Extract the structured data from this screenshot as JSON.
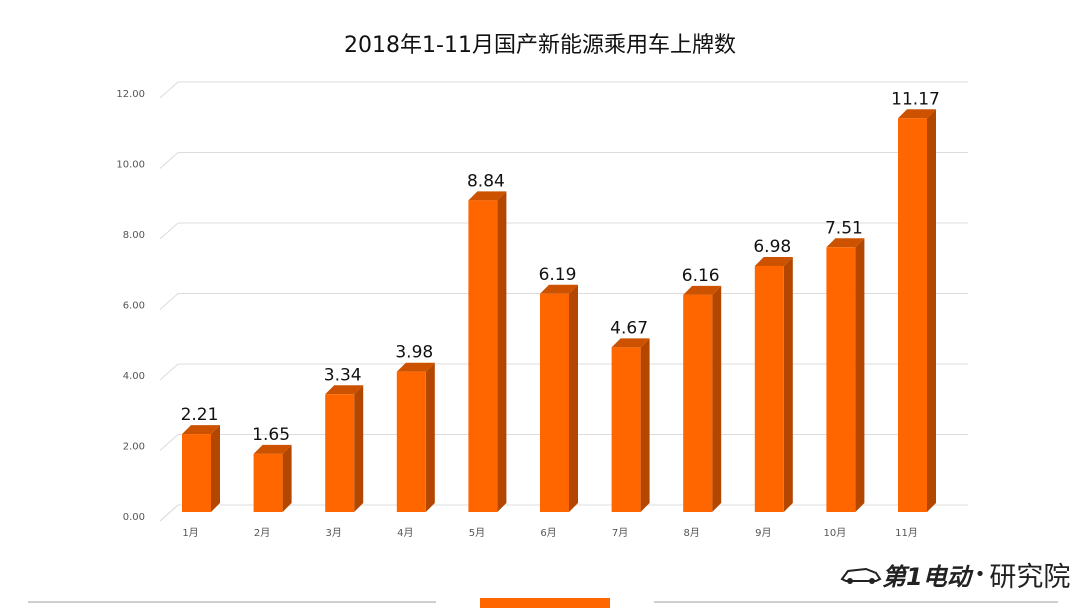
{
  "chart_data": {
    "type": "bar",
    "title": "2018年1-11月国产新能源乘用车上牌数",
    "categories": [
      "1月",
      "2月",
      "3月",
      "4月",
      "5月",
      "6月",
      "7月",
      "8月",
      "9月",
      "10月",
      "11月"
    ],
    "values": [
      2.21,
      1.65,
      3.34,
      3.98,
      8.84,
      6.19,
      4.67,
      6.16,
      6.98,
      7.51,
      11.17
    ],
    "value_labels": [
      "2.21",
      "1.65",
      "3.34",
      "3.98",
      "8.84",
      "6.19",
      "4.67",
      "6.16",
      "6.98",
      "7.51",
      "11.17"
    ],
    "yticks": [
      "0.00",
      "2.00",
      "4.00",
      "6.00",
      "8.00",
      "10.00",
      "12.00"
    ],
    "ylim": [
      0,
      12
    ],
    "grid": true,
    "colors": {
      "bar_front": "#ff6600",
      "bar_side": "#b34700",
      "bar_top": "#cc5200"
    }
  },
  "brand": {
    "logo_main": "第1电动",
    "logo_sub": "研究院",
    "logo_url": "www.d1ev.com"
  }
}
